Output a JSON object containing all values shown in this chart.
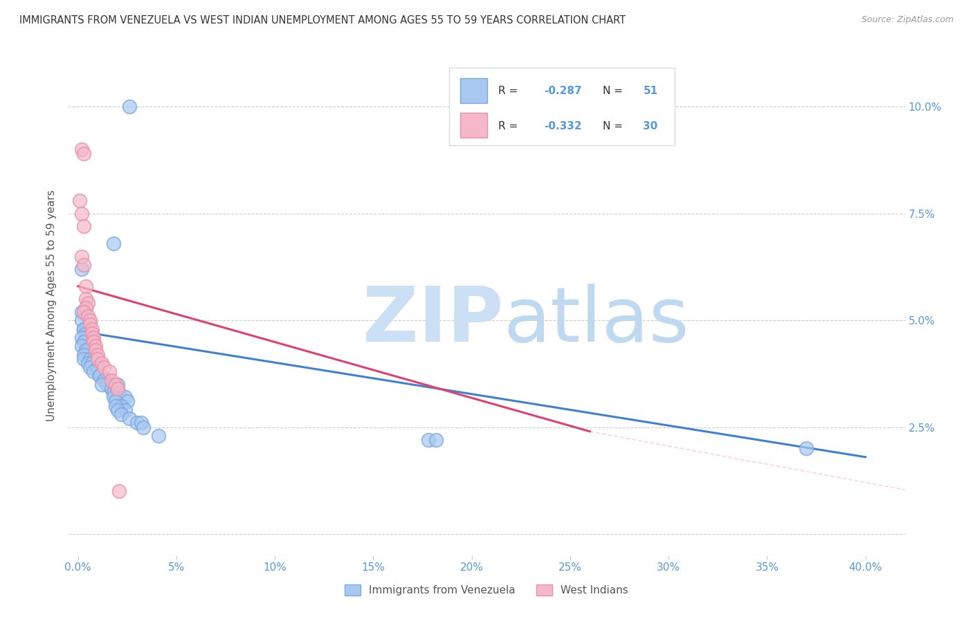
{
  "title": "IMMIGRANTS FROM VENEZUELA VS WEST INDIAN UNEMPLOYMENT AMONG AGES 55 TO 59 YEARS CORRELATION CHART",
  "source": "Source: ZipAtlas.com",
  "ylabel": "Unemployment Among Ages 55 to 59 years",
  "yticks": [
    0.0,
    0.025,
    0.05,
    0.075,
    0.1
  ],
  "ytick_labels": [
    "",
    "2.5%",
    "5.0%",
    "7.5%",
    "10.0%"
  ],
  "xticks": [
    0.0,
    0.05,
    0.1,
    0.15,
    0.2,
    0.25,
    0.3,
    0.35,
    0.4
  ],
  "xtick_labels": [
    "0.0%",
    "5%",
    "10%",
    "15%",
    "20%",
    "25%",
    "30%",
    "35%",
    "40.0%"
  ],
  "xlim": [
    -0.005,
    0.42
  ],
  "ylim": [
    -0.005,
    0.112
  ],
  "blue_color": "#a8c8f0",
  "pink_color": "#f4b8c8",
  "blue_edge_color": "#7aa8e0",
  "pink_edge_color": "#e890a8",
  "blue_line_color": "#4080d0",
  "pink_line_color": "#e04070",
  "axis_label_color": "#5599dd",
  "title_color": "#333333",
  "source_color": "#999999",
  "watermark_zip_color": "#cce0f5",
  "watermark_atlas_color": "#b8d5f0",
  "blue_scatter": [
    [
      0.026,
      0.1
    ],
    [
      0.018,
      0.068
    ],
    [
      0.002,
      0.062
    ],
    [
      0.002,
      0.052
    ],
    [
      0.002,
      0.05
    ],
    [
      0.003,
      0.048
    ],
    [
      0.004,
      0.048
    ],
    [
      0.003,
      0.048
    ],
    [
      0.004,
      0.047
    ],
    [
      0.004,
      0.046
    ],
    [
      0.002,
      0.046
    ],
    [
      0.003,
      0.045
    ],
    [
      0.002,
      0.044
    ],
    [
      0.005,
      0.043
    ],
    [
      0.004,
      0.043
    ],
    [
      0.003,
      0.042
    ],
    [
      0.003,
      0.041
    ],
    [
      0.006,
      0.041
    ],
    [
      0.005,
      0.04
    ],
    [
      0.007,
      0.04
    ],
    [
      0.006,
      0.039
    ],
    [
      0.01,
      0.039
    ],
    [
      0.01,
      0.038
    ],
    [
      0.008,
      0.038
    ],
    [
      0.011,
      0.037
    ],
    [
      0.011,
      0.037
    ],
    [
      0.015,
      0.036
    ],
    [
      0.013,
      0.036
    ],
    [
      0.015,
      0.035
    ],
    [
      0.012,
      0.035
    ],
    [
      0.02,
      0.035
    ],
    [
      0.017,
      0.034
    ],
    [
      0.018,
      0.033
    ],
    [
      0.021,
      0.033
    ],
    [
      0.018,
      0.032
    ],
    [
      0.024,
      0.032
    ],
    [
      0.025,
      0.031
    ],
    [
      0.019,
      0.031
    ],
    [
      0.022,
      0.03
    ],
    [
      0.019,
      0.03
    ],
    [
      0.024,
      0.029
    ],
    [
      0.02,
      0.029
    ],
    [
      0.022,
      0.028
    ],
    [
      0.026,
      0.027
    ],
    [
      0.03,
      0.026
    ],
    [
      0.032,
      0.026
    ],
    [
      0.033,
      0.025
    ],
    [
      0.041,
      0.023
    ],
    [
      0.178,
      0.022
    ],
    [
      0.182,
      0.022
    ],
    [
      0.37,
      0.02
    ]
  ],
  "pink_scatter": [
    [
      0.002,
      0.09
    ],
    [
      0.003,
      0.089
    ],
    [
      0.001,
      0.078
    ],
    [
      0.002,
      0.075
    ],
    [
      0.003,
      0.072
    ],
    [
      0.002,
      0.065
    ],
    [
      0.003,
      0.063
    ],
    [
      0.004,
      0.058
    ],
    [
      0.004,
      0.055
    ],
    [
      0.005,
      0.054
    ],
    [
      0.004,
      0.053
    ],
    [
      0.003,
      0.052
    ],
    [
      0.005,
      0.051
    ],
    [
      0.006,
      0.05
    ],
    [
      0.006,
      0.049
    ],
    [
      0.007,
      0.048
    ],
    [
      0.007,
      0.047
    ],
    [
      0.008,
      0.046
    ],
    [
      0.008,
      0.045
    ],
    [
      0.009,
      0.044
    ],
    [
      0.009,
      0.043
    ],
    [
      0.01,
      0.042
    ],
    [
      0.01,
      0.041
    ],
    [
      0.012,
      0.04
    ],
    [
      0.013,
      0.039
    ],
    [
      0.016,
      0.038
    ],
    [
      0.017,
      0.036
    ],
    [
      0.019,
      0.035
    ],
    [
      0.02,
      0.034
    ],
    [
      0.021,
      0.01
    ]
  ],
  "blue_trendline": [
    [
      0.0,
      0.0475
    ],
    [
      0.4,
      0.018
    ]
  ],
  "pink_trendline": [
    [
      0.0,
      0.058
    ],
    [
      0.26,
      0.024
    ]
  ],
  "pink_trendline_ext": [
    [
      0.26,
      0.024
    ],
    [
      0.6,
      -0.005
    ]
  ]
}
